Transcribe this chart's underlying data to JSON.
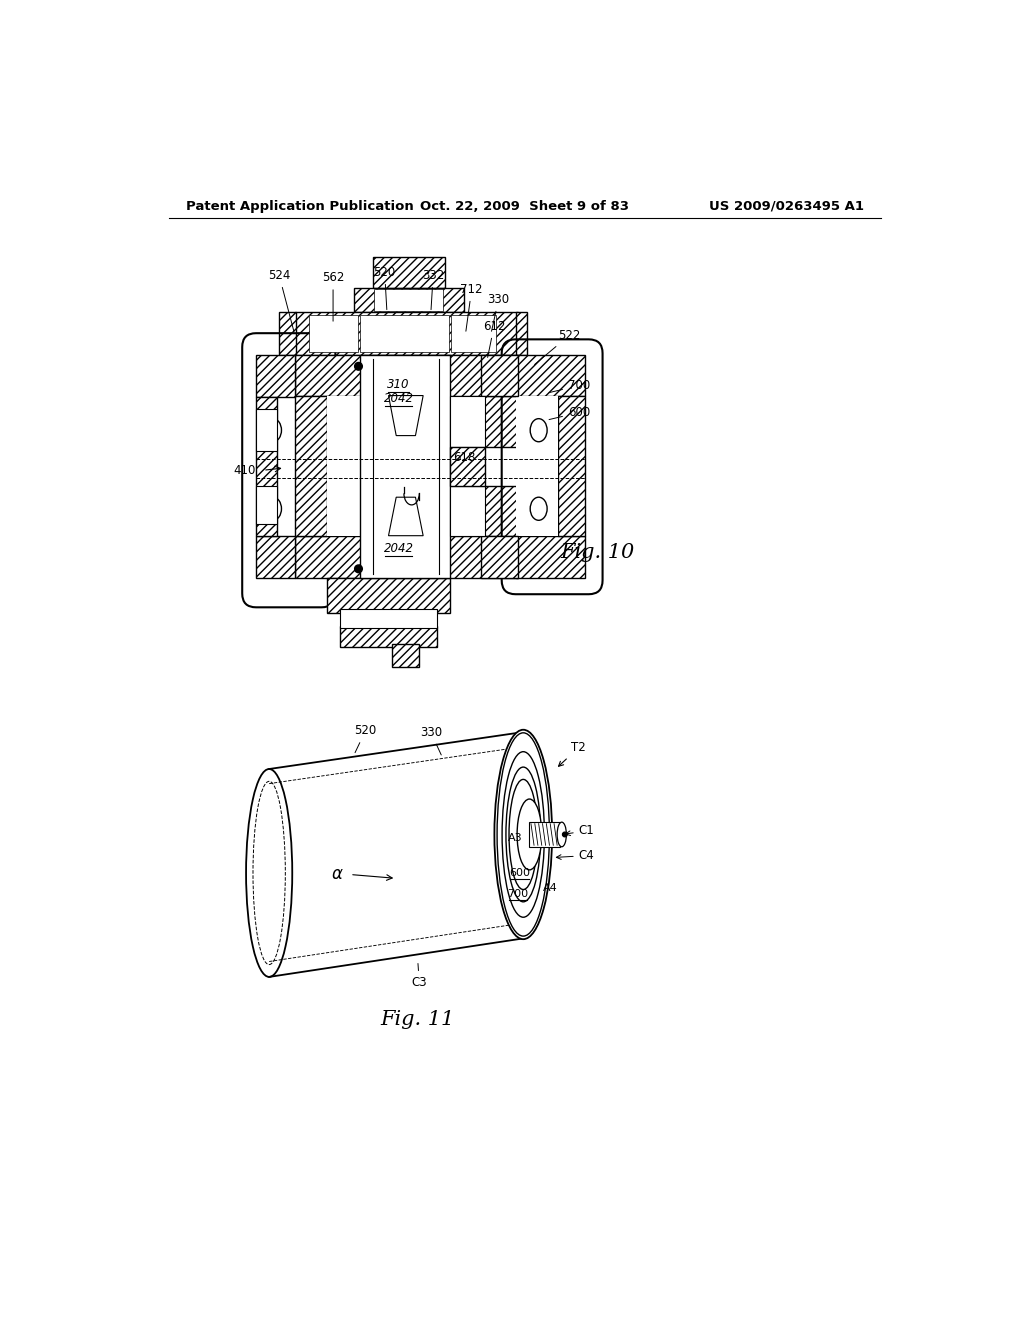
{
  "bg_color": "#ffffff",
  "header": {
    "left": "Patent Application Publication",
    "center": "Oct. 22, 2009  Sheet 9 of 83",
    "right": "US 2009/0263495 A1"
  }
}
